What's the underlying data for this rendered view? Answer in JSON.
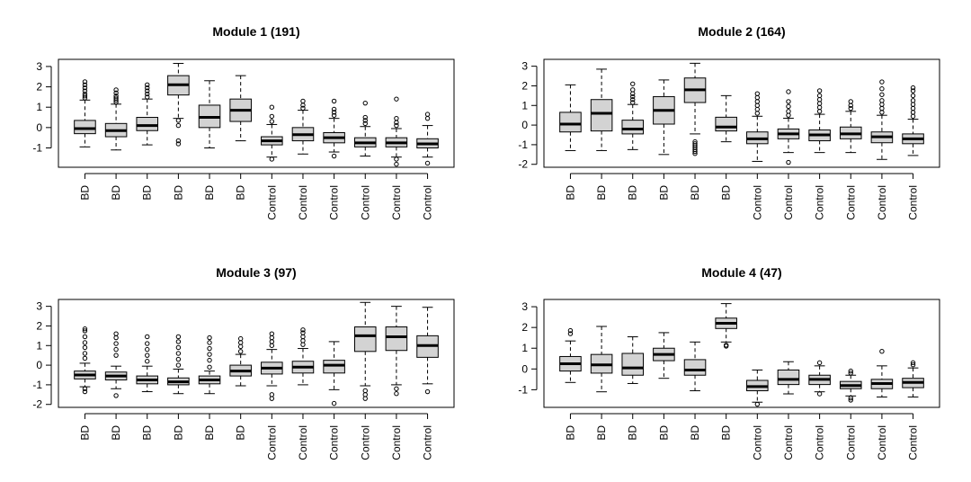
{
  "chart_data": [
    {
      "type": "box",
      "title": "Module 1 (191)",
      "categories": [
        "BD",
        "BD",
        "BD",
        "BD",
        "BD",
        "BD",
        "Control",
        "Control",
        "Control",
        "Control",
        "Control",
        "Control"
      ],
      "yticks": [
        -1,
        0,
        1,
        2,
        3
      ],
      "ylim": [
        -1.95,
        3.35
      ],
      "boxes": [
        {
          "min": -0.95,
          "q1": -0.3,
          "median": -0.05,
          "q3": 0.35,
          "max": 1.35,
          "outliers": [
            1.45,
            1.55,
            1.65,
            1.8,
            1.95,
            2.1,
            2.25
          ]
        },
        {
          "min": -1.1,
          "q1": -0.45,
          "median": -0.15,
          "q3": 0.2,
          "max": 1.15,
          "outliers": [
            1.25,
            1.35,
            1.45,
            1.55,
            1.7,
            1.85
          ]
        },
        {
          "min": -0.85,
          "q1": -0.15,
          "median": 0.1,
          "q3": 0.5,
          "max": 1.4,
          "outliers": [
            1.5,
            1.65,
            1.8,
            1.95,
            2.1
          ]
        },
        {
          "min": 0.45,
          "q1": 1.6,
          "median": 2.1,
          "q3": 2.55,
          "max": 3.15,
          "outliers": [
            0.35,
            0.1,
            -0.65,
            -0.8
          ]
        },
        {
          "min": -1.0,
          "q1": 0.0,
          "median": 0.5,
          "q3": 1.1,
          "max": 2.3,
          "outliers": []
        },
        {
          "min": -0.65,
          "q1": 0.3,
          "median": 0.85,
          "q3": 1.4,
          "max": 2.55,
          "outliers": []
        },
        {
          "min": -1.45,
          "q1": -0.85,
          "median": -0.65,
          "q3": -0.45,
          "max": 0.15,
          "outliers": [
            0.3,
            0.55,
            1.0,
            -1.55
          ]
        },
        {
          "min": -1.3,
          "q1": -0.65,
          "median": -0.35,
          "q3": 0.0,
          "max": 0.85,
          "outliers": [
            0.95,
            1.1,
            1.3
          ]
        },
        {
          "min": -1.2,
          "q1": -0.75,
          "median": -0.5,
          "q3": -0.25,
          "max": 0.45,
          "outliers": [
            0.6,
            0.75,
            0.9,
            1.3,
            -1.4
          ]
        },
        {
          "min": -1.4,
          "q1": -0.95,
          "median": -0.75,
          "q3": -0.5,
          "max": 0.05,
          "outliers": [
            0.2,
            0.35,
            0.5,
            1.2
          ]
        },
        {
          "min": -1.45,
          "q1": -0.95,
          "median": -0.75,
          "q3": -0.5,
          "max": -0.05,
          "outliers": [
            0.1,
            0.25,
            0.45,
            1.4,
            -1.55,
            -1.8
          ]
        },
        {
          "min": -1.45,
          "q1": -1.0,
          "median": -0.8,
          "q3": -0.55,
          "max": 0.1,
          "outliers": [
            0.45,
            0.65,
            -1.75
          ]
        }
      ]
    },
    {
      "type": "box",
      "title": "Module 2 (164)",
      "categories": [
        "BD",
        "BD",
        "BD",
        "BD",
        "BD",
        "BD",
        "Control",
        "Control",
        "Control",
        "Control",
        "Control",
        "Control"
      ],
      "yticks": [
        -2,
        -1,
        0,
        1,
        2,
        3
      ],
      "ylim": [
        -2.15,
        3.35
      ],
      "boxes": [
        {
          "min": -1.3,
          "q1": -0.35,
          "median": 0.05,
          "q3": 0.65,
          "max": 2.05,
          "outliers": []
        },
        {
          "min": -1.3,
          "q1": -0.3,
          "median": 0.6,
          "q3": 1.3,
          "max": 2.85,
          "outliers": []
        },
        {
          "min": -1.25,
          "q1": -0.45,
          "median": -0.2,
          "q3": 0.25,
          "max": 1.05,
          "outliers": [
            1.15,
            1.3,
            1.45,
            1.6,
            1.8,
            2.1
          ]
        },
        {
          "min": -1.5,
          "q1": 0.05,
          "median": 0.75,
          "q3": 1.45,
          "max": 2.3,
          "outliers": []
        },
        {
          "min": -0.45,
          "q1": 1.15,
          "median": 1.8,
          "q3": 2.4,
          "max": 3.15,
          "outliers": [
            -0.85,
            -0.95,
            -1.05,
            -1.15,
            -1.25,
            -1.35,
            -1.45
          ]
        },
        {
          "min": -0.85,
          "q1": -0.3,
          "median": -0.1,
          "q3": 0.4,
          "max": 1.5,
          "outliers": []
        },
        {
          "min": -1.85,
          "q1": -0.95,
          "median": -0.7,
          "q3": -0.35,
          "max": 0.45,
          "outliers": [
            0.6,
            0.8,
            1.0,
            1.2,
            1.4,
            1.6
          ]
        },
        {
          "min": -1.4,
          "q1": -0.7,
          "median": -0.45,
          "q3": -0.2,
          "max": 0.35,
          "outliers": [
            0.5,
            0.7,
            0.95,
            1.2,
            1.7,
            -1.9
          ]
        },
        {
          "min": -1.4,
          "q1": -0.8,
          "median": -0.5,
          "q3": -0.25,
          "max": 0.55,
          "outliers": [
            0.7,
            0.9,
            1.1,
            1.3,
            1.5,
            1.75
          ]
        },
        {
          "min": -1.4,
          "q1": -0.7,
          "median": -0.45,
          "q3": -0.1,
          "max": 0.7,
          "outliers": [
            0.85,
            1.0,
            1.2
          ]
        },
        {
          "min": -1.75,
          "q1": -0.9,
          "median": -0.6,
          "q3": -0.35,
          "max": 0.5,
          "outliers": [
            0.65,
            0.85,
            1.05,
            1.25,
            1.55,
            1.85,
            2.2
          ]
        },
        {
          "min": -1.55,
          "q1": -0.95,
          "median": -0.7,
          "q3": -0.45,
          "max": 0.3,
          "outliers": [
            0.45,
            0.65,
            0.85,
            1.05,
            1.25,
            1.5,
            1.75,
            1.9
          ]
        }
      ]
    },
    {
      "type": "box",
      "title": "Module 3 (97)",
      "categories": [
        "BD",
        "BD",
        "BD",
        "BD",
        "BD",
        "BD",
        "Control",
        "Control",
        "Control",
        "Control",
        "Control",
        "Control"
      ],
      "yticks": [
        -2,
        -1,
        0,
        1,
        2,
        3
      ],
      "ylim": [
        -2.15,
        3.35
      ],
      "boxes": [
        {
          "min": -1.1,
          "q1": -0.7,
          "median": -0.5,
          "q3": -0.3,
          "max": 0.1,
          "outliers": [
            0.35,
            0.6,
            0.9,
            1.15,
            1.45,
            1.75,
            1.85,
            -1.2,
            -1.35
          ]
        },
        {
          "min": -1.2,
          "q1": -0.75,
          "median": -0.55,
          "q3": -0.35,
          "max": -0.05,
          "outliers": [
            0.5,
            0.8,
            1.1,
            1.4,
            1.6,
            -1.55
          ]
        },
        {
          "min": -1.35,
          "q1": -0.95,
          "median": -0.75,
          "q3": -0.55,
          "max": -0.05,
          "outliers": [
            0.2,
            0.5,
            0.8,
            1.1,
            1.45
          ]
        },
        {
          "min": -1.45,
          "q1": -1.0,
          "median": -0.85,
          "q3": -0.65,
          "max": -0.2,
          "outliers": [
            0.0,
            0.3,
            0.6,
            0.9,
            1.2,
            1.45
          ]
        },
        {
          "min": -1.45,
          "q1": -0.95,
          "median": -0.75,
          "q3": -0.55,
          "max": -0.3,
          "outliers": [
            -0.1,
            0.25,
            0.55,
            0.85,
            1.15,
            1.4
          ]
        },
        {
          "min": -1.05,
          "q1": -0.55,
          "median": -0.3,
          "q3": 0.0,
          "max": 0.55,
          "outliers": [
            0.7,
            0.95,
            1.15,
            1.35
          ]
        },
        {
          "min": -1.05,
          "q1": -0.45,
          "median": -0.15,
          "q3": 0.15,
          "max": 0.8,
          "outliers": [
            1.0,
            1.2,
            1.4,
            1.6,
            -1.5,
            -1.7
          ]
        },
        {
          "min": -1.0,
          "q1": -0.4,
          "median": -0.1,
          "q3": 0.2,
          "max": 0.85,
          "outliers": [
            1.05,
            1.25,
            1.45,
            1.65,
            1.8
          ]
        },
        {
          "min": -1.25,
          "q1": -0.4,
          "median": 0.0,
          "q3": 0.25,
          "max": 1.2,
          "outliers": [
            -1.95
          ]
        },
        {
          "min": -1.05,
          "q1": 0.7,
          "median": 1.5,
          "q3": 1.95,
          "max": 3.2,
          "outliers": [
            -1.3,
            -1.5,
            -1.7
          ]
        },
        {
          "min": -1.0,
          "q1": 0.75,
          "median": 1.45,
          "q3": 1.95,
          "max": 3.0,
          "outliers": [
            -1.2,
            -1.45
          ]
        },
        {
          "min": -0.95,
          "q1": 0.4,
          "median": 1.0,
          "q3": 1.5,
          "max": 2.95,
          "outliers": [
            -1.35
          ]
        }
      ]
    },
    {
      "type": "box",
      "title": "Module 4 (47)",
      "categories": [
        "BD",
        "BD",
        "BD",
        "BD",
        "BD",
        "BD",
        "Control",
        "Control",
        "Control",
        "Control",
        "Control",
        "Control"
      ],
      "yticks": [
        -1,
        0,
        1,
        2,
        3
      ],
      "ylim": [
        -1.85,
        3.35
      ],
      "boxes": [
        {
          "min": -0.65,
          "q1": -0.1,
          "median": 0.25,
          "q3": 0.6,
          "max": 1.35,
          "outliers": [
            1.7,
            1.85
          ]
        },
        {
          "min": -1.1,
          "q1": -0.2,
          "median": 0.2,
          "q3": 0.7,
          "max": 2.05,
          "outliers": []
        },
        {
          "min": -0.7,
          "q1": -0.3,
          "median": 0.05,
          "q3": 0.75,
          "max": 1.55,
          "outliers": []
        },
        {
          "min": -0.45,
          "q1": 0.4,
          "median": 0.7,
          "q3": 1.0,
          "max": 1.75,
          "outliers": []
        },
        {
          "min": -1.05,
          "q1": -0.3,
          "median": -0.05,
          "q3": 0.45,
          "max": 1.3,
          "outliers": []
        },
        {
          "min": 1.3,
          "q1": 1.95,
          "median": 2.2,
          "q3": 2.45,
          "max": 3.15,
          "outliers": [
            1.1,
            1.15
          ]
        },
        {
          "min": -1.6,
          "q1": -1.05,
          "median": -0.85,
          "q3": -0.55,
          "max": -0.05,
          "outliers": [
            -1.7
          ]
        },
        {
          "min": -1.2,
          "q1": -0.75,
          "median": -0.5,
          "q3": -0.05,
          "max": 0.35,
          "outliers": []
        },
        {
          "min": -1.1,
          "q1": -0.75,
          "median": -0.5,
          "q3": -0.3,
          "max": 0.15,
          "outliers": [
            0.3,
            -1.2
          ]
        },
        {
          "min": -1.3,
          "q1": -0.95,
          "median": -0.8,
          "q3": -0.6,
          "max": -0.3,
          "outliers": [
            -0.1,
            -0.2,
            -1.4,
            -1.5
          ]
        },
        {
          "min": -1.35,
          "q1": -0.95,
          "median": -0.7,
          "q3": -0.5,
          "max": 0.15,
          "outliers": [
            0.85
          ]
        },
        {
          "min": -1.35,
          "q1": -0.9,
          "median": -0.65,
          "q3": -0.45,
          "max": 0.05,
          "outliers": [
            0.2,
            0.3
          ]
        }
      ]
    }
  ]
}
